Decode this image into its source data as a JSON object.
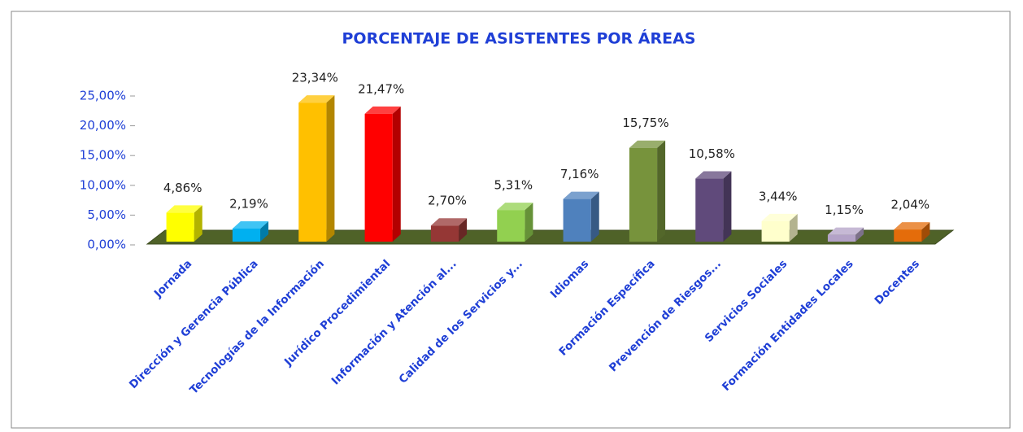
{
  "chart_data": {
    "type": "bar3d",
    "title": "PORCENTAJE DE ASISTENTES POR ÁREAS",
    "categories": [
      "Jornada",
      "Dirección y Gerencia Pública",
      "Tecnologías de la Información",
      "Jurídico Procedimiental",
      "Información y Atención al...",
      "Calidad de los Servicios y...",
      "Idiomas",
      "Formación Específica",
      "Prevención de Riesgos...",
      "Servicios Sociales",
      "Formación Entidades Locales",
      "Docentes"
    ],
    "values": [
      4.86,
      2.19,
      23.34,
      21.47,
      2.7,
      5.31,
      7.16,
      15.75,
      10.58,
      3.44,
      1.15,
      2.04
    ],
    "value_labels": [
      "4,86%",
      "2,19%",
      "23,34%",
      "21,47%",
      "2,70%",
      "5,31%",
      "7,16%",
      "15,75%",
      "10,58%",
      "3,44%",
      "1,15%",
      "2,04%"
    ],
    "colors": [
      "#ffff00",
      "#00b0f0",
      "#ffc000",
      "#ff0000",
      "#953735",
      "#92d050",
      "#4f81bd",
      "#77933c",
      "#604a7b",
      "#ffffcc",
      "#b3a2c7",
      "#e46c0a"
    ],
    "ylim": [
      0,
      25
    ],
    "yticks": [
      {
        "value": 0,
        "label": "0,00%"
      },
      {
        "value": 5,
        "label": "5,00%"
      },
      {
        "value": 10,
        "label": "10,00%"
      },
      {
        "value": 15,
        "label": "15,00%"
      },
      {
        "value": 20,
        "label": "20,00%"
      },
      {
        "value": 25,
        "label": "25,00%"
      }
    ]
  }
}
